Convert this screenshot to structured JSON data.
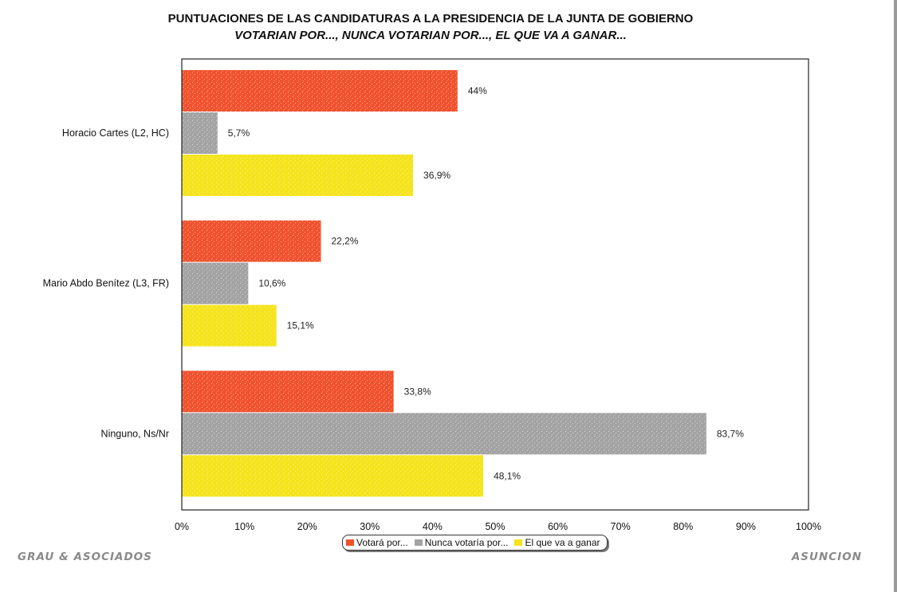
{
  "title": "PUNTUACIONES DE LAS CANDIDATURAS A LA PRESIDENCIA DE LA JUNTA DE GOBIERNO",
  "subtitle": "VOTARIAN POR..., NUNCA VOTARIAN POR..., EL QUE VA A GANAR...",
  "footer": {
    "left": "GRAU & ASOCIADOS",
    "right": "ASUNCION"
  },
  "colors": {
    "series1": "#f0522e",
    "series2": "#a3a3a3",
    "series3": "#f5e31c",
    "frame": "#222222"
  },
  "chart_data": {
    "type": "bar",
    "orientation": "horizontal",
    "categories": [
      "Horacio Cartes (L2, HC)",
      "Mario Abdo Benítez (L3, FR)",
      "Ninguno, Ns/Nr"
    ],
    "series": [
      {
        "name": "Votará por...",
        "values": [
          44,
          22.2,
          33.8
        ],
        "labels": [
          "44%",
          "22,2%",
          "33,8%"
        ]
      },
      {
        "name": "Nunca votaría por...",
        "values": [
          5.7,
          10.6,
          83.7
        ],
        "labels": [
          "5,7%",
          "10,6%",
          "83,7%"
        ]
      },
      {
        "name": "El que va a ganar",
        "values": [
          36.9,
          15.1,
          48.1
        ],
        "labels": [
          "36,9%",
          "15,1%",
          "48,1%"
        ]
      }
    ],
    "xlim": [
      0,
      100
    ],
    "xticks": [
      "0%",
      "10%",
      "20%",
      "30%",
      "40%",
      "50%",
      "60%",
      "70%",
      "80%",
      "90%",
      "100%"
    ],
    "grid": false,
    "legend_position": "bottom-center"
  }
}
